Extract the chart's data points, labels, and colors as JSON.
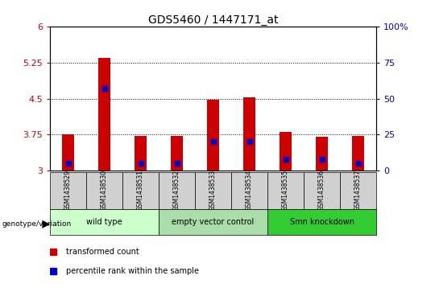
{
  "title": "GDS5460 / 1447171_at",
  "samples": [
    "GSM1438529",
    "GSM1438530",
    "GSM1438531",
    "GSM1438532",
    "GSM1438533",
    "GSM1438534",
    "GSM1438535",
    "GSM1438536",
    "GSM1438537"
  ],
  "transformed_counts": [
    3.75,
    5.35,
    3.72,
    3.72,
    4.48,
    4.52,
    3.8,
    3.7,
    3.72
  ],
  "percentile_ranks": [
    5.0,
    57.0,
    5.0,
    5.0,
    20.0,
    20.0,
    8.0,
    8.0,
    5.0
  ],
  "ymin": 3.0,
  "ymax": 6.0,
  "yticks": [
    3.0,
    3.75,
    4.5,
    5.25,
    6.0
  ],
  "ytick_labels": [
    "3",
    "3.75",
    "4.5",
    "5.25",
    "6"
  ],
  "right_yticks": [
    0,
    25,
    50,
    75,
    100
  ],
  "right_ytick_labels": [
    "0",
    "25",
    "50",
    "75",
    "100%"
  ],
  "bar_color": "#cc0000",
  "marker_color": "#0000cc",
  "right_axis_color": "#0000cc",
  "left_axis_color": "#cc0000",
  "bar_width": 0.35,
  "grid_color": "black",
  "plot_bg": "white",
  "sample_box_color": "#d0d0d0",
  "group_data": [
    {
      "label": "wild type",
      "start": 0,
      "end": 3,
      "color": "#ccffcc"
    },
    {
      "label": "empty vector control",
      "start": 3,
      "end": 6,
      "color": "#aaddaa"
    },
    {
      "label": "Smn knockdown",
      "start": 6,
      "end": 9,
      "color": "#33cc33"
    }
  ],
  "genotype_label": "genotype/variation",
  "legend_red": "transformed count",
  "legend_blue": "percentile rank within the sample",
  "marker_size": 4.5,
  "title_fontsize": 10,
  "tick_fontsize": 8,
  "sample_fontsize": 5.5,
  "group_fontsize": 7,
  "legend_fontsize": 7
}
